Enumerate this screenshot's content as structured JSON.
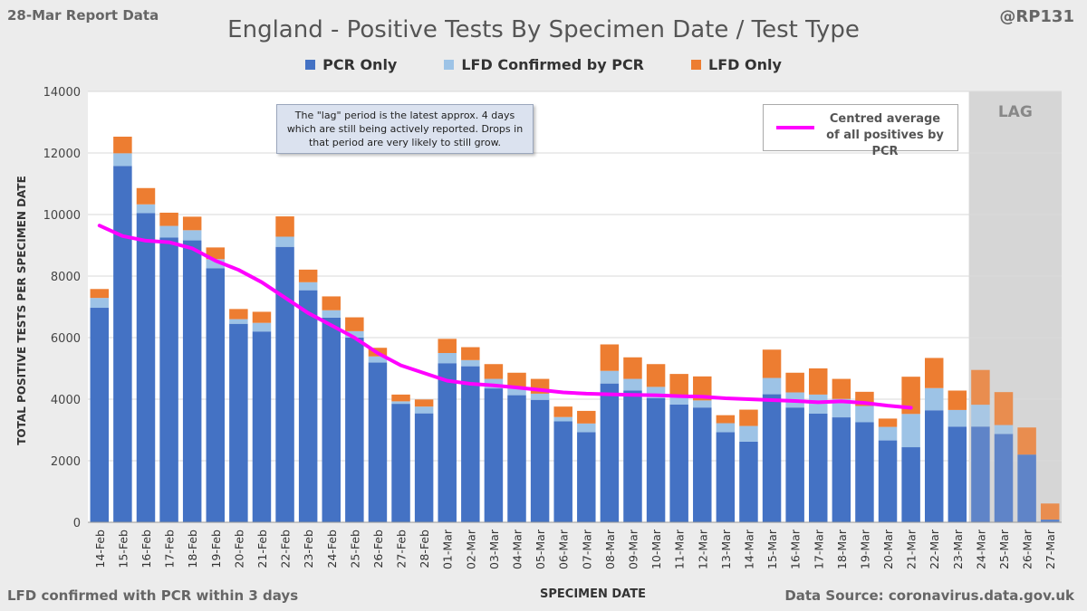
{
  "header": {
    "report_label": "28-Mar Report Data",
    "handle": "@RP131",
    "footnote": "LFD confirmed with PCR within 3 days",
    "source": "Data Source: coronavirus.data.gov.uk"
  },
  "annotation": "The \"lag\" period is the latest approx. 4 days which are still being actively reported. Drops in that period are very likely to still grow.",
  "colors": {
    "pcr": "#4472c4",
    "lfd_confirmed": "#9dc3e6",
    "lfd_only": "#ed7d31",
    "average": "#ff00ff",
    "lag_shade": "#d6d6d6"
  },
  "chart_data": {
    "type": "bar",
    "stacked": true,
    "title": "England - Positive Tests By Specimen Date / Test Type",
    "xlabel": "SPECIMEN DATE",
    "ylabel": "TOTAL POSITIVE TESTS PER SPECIMEN DATE",
    "ylim": [
      0,
      14000
    ],
    "yticks": [
      0,
      2000,
      4000,
      6000,
      8000,
      10000,
      12000,
      14000
    ],
    "grid": true,
    "legend_position": "top",
    "categories": [
      "14-Feb",
      "15-Feb",
      "16-Feb",
      "17-Feb",
      "18-Feb",
      "19-Feb",
      "20-Feb",
      "21-Feb",
      "22-Feb",
      "23-Feb",
      "24-Feb",
      "25-Feb",
      "26-Feb",
      "27-Feb",
      "28-Feb",
      "01-Mar",
      "02-Mar",
      "03-Mar",
      "04-Mar",
      "05-Mar",
      "06-Mar",
      "07-Mar",
      "08-Mar",
      "09-Mar",
      "10-Mar",
      "11-Mar",
      "12-Mar",
      "13-Mar",
      "14-Mar",
      "15-Mar",
      "16-Mar",
      "17-Mar",
      "18-Mar",
      "19-Mar",
      "20-Mar",
      "21-Mar",
      "22-Mar",
      "23-Mar",
      "24-Mar",
      "25-Mar",
      "26-Mar",
      "27-Mar"
    ],
    "series": [
      {
        "name": "PCR Only",
        "values": [
          6970,
          11580,
          10050,
          9250,
          9160,
          8250,
          6450,
          6200,
          8950,
          7540,
          6650,
          6000,
          5190,
          3850,
          3540,
          5170,
          5070,
          4350,
          4130,
          3980,
          3280,
          2930,
          4510,
          4280,
          4030,
          3830,
          3730,
          2930,
          2620,
          4160,
          3730,
          3530,
          3410,
          3250,
          2660,
          2440,
          3640,
          3110,
          3110,
          2870,
          2200,
          90
        ]
      },
      {
        "name": "LFD Confirmed by PCR",
        "values": [
          320,
          410,
          280,
          380,
          330,
          300,
          150,
          280,
          330,
          260,
          240,
          210,
          200,
          80,
          220,
          330,
          200,
          310,
          230,
          200,
          140,
          280,
          410,
          380,
          370,
          310,
          230,
          290,
          510,
          530,
          490,
          620,
          600,
          530,
          440,
          1080,
          720,
          540,
          710,
          290,
          0,
          0
        ]
      },
      {
        "name": "LFD Only",
        "values": [
          290,
          540,
          530,
          430,
          440,
          380,
          330,
          360,
          660,
          410,
          450,
          450,
          280,
          220,
          230,
          460,
          420,
          480,
          500,
          480,
          340,
          410,
          860,
          700,
          740,
          680,
          780,
          260,
          530,
          920,
          640,
          850,
          650,
          460,
          270,
          1210,
          980,
          630,
          1130,
          1070,
          880,
          520
        ]
      }
    ],
    "average": {
      "name": "Centred average of all positives by PCR",
      "values": [
        9640,
        9300,
        9150,
        9100,
        8900,
        8500,
        8200,
        7800,
        7300,
        6800,
        6400,
        6000,
        5500,
        5100,
        4850,
        4600,
        4500,
        4450,
        4380,
        4300,
        4220,
        4180,
        4160,
        4140,
        4130,
        4100,
        4080,
        4030,
        4000,
        3970,
        3940,
        3900,
        3930,
        3880,
        3790,
        3720
      ]
    },
    "lag_label": "LAG",
    "lag_categories": [
      "24-Mar",
      "25-Mar",
      "26-Mar",
      "27-Mar"
    ]
  }
}
